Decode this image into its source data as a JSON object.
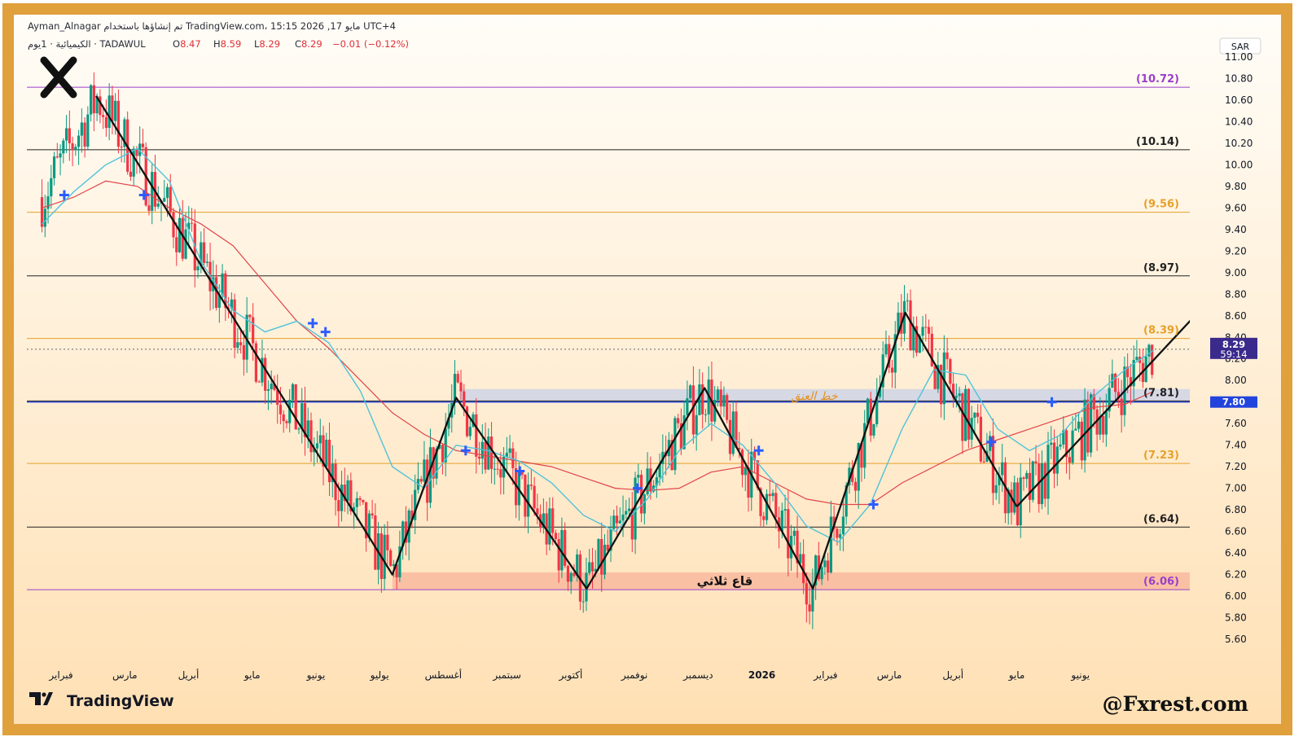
{
  "header": {
    "line1": "Ayman_Alnagar تم إنشاؤها باستخدام TradingView.com، 15:15 2026 ,17 مايو UTC+4",
    "symbol_line": "الكيميائية · 1يوم · TADAWUL",
    "ohlc": [
      {
        "label": "O",
        "value": "8.47"
      },
      {
        "label": "H",
        "value": "8.59"
      },
      {
        "label": "L",
        "value": "8.29"
      },
      {
        "label": "C",
        "value": "8.29"
      },
      {
        "label": "",
        "value": "−0.01 (−0.12%)"
      }
    ]
  },
  "currency": "SAR",
  "price_tag": {
    "value": "8.29",
    "countdown": "59:14"
  },
  "neckline_tag": "7.80",
  "annotations": {
    "neckline": "خط العنق",
    "triple_bottom": "قاع ثلاثي",
    "logo_mark": "X"
  },
  "footer": {
    "brand": "TradingView",
    "handle": "@Fxrest.com"
  },
  "colors": {
    "frame": "#e0a03c",
    "bg_top": "#fffdf8",
    "bg_bottom": "#ffe0b4",
    "up": "#089981",
    "down": "#f23645",
    "ma_fast": "#4fc3d9",
    "ma_slow": "#e0454a",
    "neckline": "#2244dd",
    "level_black": "#222222",
    "level_orange": "#e6a12a",
    "level_purple": "#9b3fc9"
  },
  "chart_data": {
    "type": "line",
    "title": "",
    "symbol": "TADAWUL",
    "timeframe": "1D",
    "ylim": [
      5.5,
      11.0
    ],
    "y_ticks": [
      "11.00",
      "10.80",
      "10.60",
      "10.40",
      "10.20",
      "10.00",
      "9.80",
      "9.60",
      "9.40",
      "9.20",
      "9.00",
      "8.80",
      "8.60",
      "8.40",
      "8.20",
      "8.00",
      "7.80",
      "7.60",
      "7.40",
      "7.20",
      "7.00",
      "6.80",
      "6.60",
      "6.40",
      "6.20",
      "6.00",
      "5.80",
      "5.60"
    ],
    "x_ticks": [
      "فبراير",
      "مارس",
      "أبريل",
      "مايو",
      "يونيو",
      "يوليو",
      "أغسطس",
      "سبتمبر",
      "أكتوبر",
      "نوفمبر",
      "ديسمبر",
      "2026",
      "فبراير",
      "مارس",
      "أبريل",
      "مايو",
      "يونيو"
    ],
    "x_tick_months": [
      1,
      2,
      3,
      4,
      5,
      6,
      7,
      8,
      9,
      10,
      11,
      12,
      13,
      14,
      15,
      16,
      17
    ],
    "fib_levels": [
      {
        "value": 10.72,
        "label": "(10.72)",
        "kind": "purple"
      },
      {
        "value": 10.14,
        "label": "(10.14)",
        "kind": "black"
      },
      {
        "value": 9.56,
        "label": "(9.56)",
        "kind": "orange"
      },
      {
        "value": 8.97,
        "label": "(8.97)",
        "kind": "black"
      },
      {
        "value": 8.39,
        "label": "(8.39)",
        "kind": "orange"
      },
      {
        "value": 7.81,
        "label": "(7.81)",
        "kind": "black"
      },
      {
        "value": 7.23,
        "label": "(7.23)",
        "kind": "orange"
      },
      {
        "value": 6.64,
        "label": "(6.64)",
        "kind": "black"
      },
      {
        "value": 6.06,
        "label": "(6.06)",
        "kind": "purple"
      }
    ],
    "last_price": 8.29,
    "neckline": 7.8,
    "neckline_zone": {
      "low": 7.8,
      "high": 7.92,
      "start": 6.55,
      "end": 17.55
    },
    "support_zone": {
      "low": 6.06,
      "high": 6.22,
      "start": 5.5,
      "end": 17.55
    },
    "zigzag": [
      {
        "t": 0.85,
        "p": 10.64
      },
      {
        "t": 5.5,
        "p": 6.2
      },
      {
        "t": 6.5,
        "p": 7.84
      },
      {
        "t": 8.55,
        "p": 6.07
      },
      {
        "t": 10.4,
        "p": 7.93
      },
      {
        "t": 12.1,
        "p": 6.07
      },
      {
        "t": 13.55,
        "p": 8.63
      },
      {
        "t": 15.3,
        "p": 6.83
      }
    ],
    "trendline": [
      {
        "t": 15.3,
        "p": 6.83
      },
      {
        "t": 18.87,
        "p": 9.09
      }
    ],
    "ma_fast": [
      {
        "t": 0.0,
        "p": 9.45
      },
      {
        "t": 0.5,
        "p": 9.75
      },
      {
        "t": 1.0,
        "p": 10.0
      },
      {
        "t": 1.5,
        "p": 10.15
      },
      {
        "t": 2.0,
        "p": 9.85
      },
      {
        "t": 2.5,
        "p": 9.1
      },
      {
        "t": 3.0,
        "p": 8.65
      },
      {
        "t": 3.5,
        "p": 8.45
      },
      {
        "t": 4.0,
        "p": 8.55
      },
      {
        "t": 4.5,
        "p": 8.35
      },
      {
        "t": 5.0,
        "p": 7.9
      },
      {
        "t": 5.5,
        "p": 7.2
      },
      {
        "t": 6.0,
        "p": 7.0
      },
      {
        "t": 6.5,
        "p": 7.4
      },
      {
        "t": 7.0,
        "p": 7.35
      },
      {
        "t": 7.5,
        "p": 7.25
      },
      {
        "t": 8.0,
        "p": 7.05
      },
      {
        "t": 8.5,
        "p": 6.75
      },
      {
        "t": 9.0,
        "p": 6.6
      },
      {
        "t": 9.5,
        "p": 6.9
      },
      {
        "t": 10.0,
        "p": 7.35
      },
      {
        "t": 10.5,
        "p": 7.6
      },
      {
        "t": 11.0,
        "p": 7.4
      },
      {
        "t": 11.5,
        "p": 7.05
      },
      {
        "t": 12.0,
        "p": 6.65
      },
      {
        "t": 12.5,
        "p": 6.5
      },
      {
        "t": 13.0,
        "p": 6.85
      },
      {
        "t": 13.5,
        "p": 7.55
      },
      {
        "t": 14.0,
        "p": 8.1
      },
      {
        "t": 14.5,
        "p": 8.05
      },
      {
        "t": 15.0,
        "p": 7.55
      },
      {
        "t": 15.5,
        "p": 7.35
      },
      {
        "t": 16.0,
        "p": 7.5
      },
      {
        "t": 16.5,
        "p": 7.85
      },
      {
        "t": 17.0,
        "p": 8.1
      },
      {
        "t": 17.45,
        "p": 8.28
      }
    ],
    "ma_slow": [
      {
        "t": 0.0,
        "p": 9.6
      },
      {
        "t": 0.5,
        "p": 9.7
      },
      {
        "t": 1.0,
        "p": 9.85
      },
      {
        "t": 1.5,
        "p": 9.8
      },
      {
        "t": 2.0,
        "p": 9.6
      },
      {
        "t": 2.5,
        "p": 9.45
      },
      {
        "t": 3.0,
        "p": 9.25
      },
      {
        "t": 3.5,
        "p": 8.9
      },
      {
        "t": 4.0,
        "p": 8.55
      },
      {
        "t": 4.5,
        "p": 8.3
      },
      {
        "t": 5.0,
        "p": 8.0
      },
      {
        "t": 5.5,
        "p": 7.7
      },
      {
        "t": 6.0,
        "p": 7.5
      },
      {
        "t": 6.5,
        "p": 7.35
      },
      {
        "t": 7.0,
        "p": 7.3
      },
      {
        "t": 7.5,
        "p": 7.25
      },
      {
        "t": 8.0,
        "p": 7.2
      },
      {
        "t": 8.5,
        "p": 7.1
      },
      {
        "t": 9.0,
        "p": 7.0
      },
      {
        "t": 9.5,
        "p": 6.98
      },
      {
        "t": 10.0,
        "p": 7.0
      },
      {
        "t": 10.5,
        "p": 7.15
      },
      {
        "t": 11.0,
        "p": 7.2
      },
      {
        "t": 11.5,
        "p": 7.05
      },
      {
        "t": 12.0,
        "p": 6.9
      },
      {
        "t": 12.5,
        "p": 6.85
      },
      {
        "t": 13.0,
        "p": 6.85
      },
      {
        "t": 13.5,
        "p": 7.05
      },
      {
        "t": 14.0,
        "p": 7.2
      },
      {
        "t": 14.5,
        "p": 7.35
      },
      {
        "t": 15.0,
        "p": 7.45
      },
      {
        "t": 15.5,
        "p": 7.55
      },
      {
        "t": 16.0,
        "p": 7.65
      },
      {
        "t": 16.5,
        "p": 7.75
      },
      {
        "t": 17.0,
        "p": 7.78
      },
      {
        "t": 17.45,
        "p": 7.9
      }
    ],
    "cross_markers": [
      {
        "t": 0.35,
        "p": 9.72
      },
      {
        "t": 1.6,
        "p": 9.72
      },
      {
        "t": 4.25,
        "p": 8.53
      },
      {
        "t": 4.45,
        "p": 8.45
      },
      {
        "t": 6.65,
        "p": 7.35
      },
      {
        "t": 7.5,
        "p": 7.16
      },
      {
        "t": 9.35,
        "p": 7.0
      },
      {
        "t": 11.25,
        "p": 7.35
      },
      {
        "t": 13.05,
        "p": 6.85
      },
      {
        "t": 14.9,
        "p": 7.43
      },
      {
        "t": 15.85,
        "p": 7.8
      }
    ],
    "candles_note": "Daily candles approximated around the zigzag path with upper and lower wicks"
  }
}
